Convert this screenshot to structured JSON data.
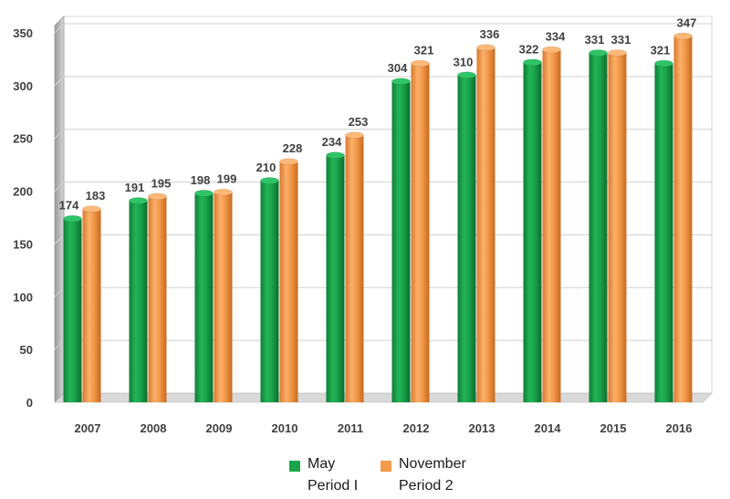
{
  "chart_data": {
    "type": "bar",
    "categories": [
      "2007",
      "2008",
      "2009",
      "2010",
      "2011",
      "2012",
      "2013",
      "2014",
      "2015",
      "2016"
    ],
    "series": [
      {
        "name": "May",
        "subtitle": "Period I",
        "color": "#1aa54b",
        "values": [
          174,
          191,
          198,
          210,
          234,
          304,
          310,
          322,
          331,
          321
        ]
      },
      {
        "name": "November",
        "subtitle": "Period 2",
        "color": "#f39a4b",
        "values": [
          183,
          195,
          199,
          228,
          253,
          321,
          336,
          334,
          331,
          347
        ]
      }
    ],
    "yticks": [
      0,
      50,
      100,
      150,
      200,
      250,
      300,
      350
    ],
    "ylim": [
      0,
      350
    ],
    "grid": true,
    "legend_position": "bottom"
  }
}
